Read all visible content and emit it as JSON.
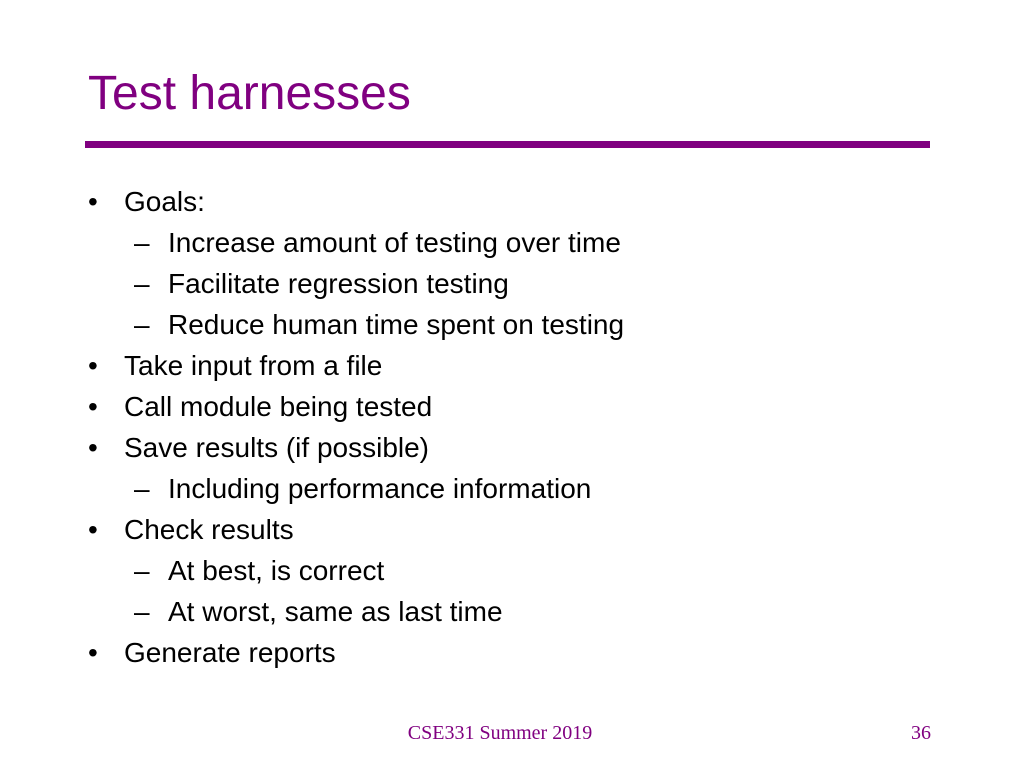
{
  "slide": {
    "title": "Test harnesses",
    "accent_color": "#800080",
    "text_color": "#000000",
    "markers": {
      "level1": "•",
      "level2": "–"
    },
    "bullets": [
      {
        "level": 1,
        "text": "Goals:"
      },
      {
        "level": 2,
        "text": "Increase amount of testing over time"
      },
      {
        "level": 2,
        "text": "Facilitate regression testing"
      },
      {
        "level": 2,
        "text": "Reduce human time spent on testing"
      },
      {
        "level": 1,
        "text": "Take input from a file"
      },
      {
        "level": 1,
        "text": "Call module being tested"
      },
      {
        "level": 1,
        "text": "Save results (if possible)"
      },
      {
        "level": 2,
        "text": "Including performance information"
      },
      {
        "level": 1,
        "text": "Check results"
      },
      {
        "level": 2,
        "text": "At best, is correct"
      },
      {
        "level": 2,
        "text": "At worst, same as last time"
      },
      {
        "level": 1,
        "text": "Generate reports"
      }
    ],
    "footer": {
      "course": "CSE331 Summer 2019",
      "page_number": "36"
    }
  }
}
